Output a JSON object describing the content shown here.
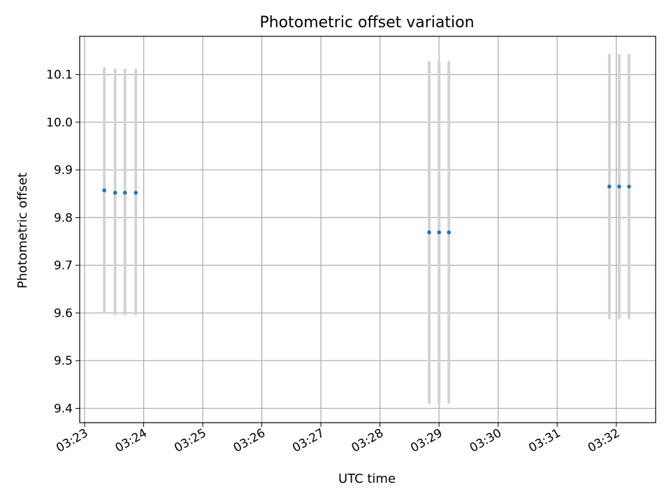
{
  "chart_data": {
    "type": "scatter",
    "title": "Photometric offset variation",
    "xlabel": "UTC time",
    "ylabel": "Photometric offset",
    "grid": true,
    "xlim": [
      "03:22:55",
      "03:32:40"
    ],
    "ylim": [
      9.37,
      10.18
    ],
    "x_ticks": [
      "03:23",
      "03:24",
      "03:25",
      "03:26",
      "03:27",
      "03:28",
      "03:29",
      "03:30",
      "03:31",
      "03:32"
    ],
    "y_ticks": [
      "9.4",
      "9.5",
      "9.6",
      "9.7",
      "9.8",
      "9.9",
      "10.0",
      "10.1"
    ],
    "colors": {
      "points": "#1f77b4",
      "errorbars": "#d3d3d3",
      "grid": "#b0b0b0"
    },
    "points": [
      {
        "x": "03:23:20",
        "y": 9.857,
        "low": 9.6,
        "high": 10.115
      },
      {
        "x": "03:23:31",
        "y": 9.852,
        "low": 9.595,
        "high": 10.112
      },
      {
        "x": "03:23:41",
        "y": 9.852,
        "low": 9.595,
        "high": 10.112
      },
      {
        "x": "03:23:52",
        "y": 9.852,
        "low": 9.595,
        "high": 10.112
      },
      {
        "x": "03:28:50",
        "y": 9.769,
        "low": 9.41,
        "high": 10.128
      },
      {
        "x": "03:29:00",
        "y": 9.769,
        "low": 9.41,
        "high": 10.128
      },
      {
        "x": "03:29:10",
        "y": 9.769,
        "low": 9.41,
        "high": 10.128
      },
      {
        "x": "03:31:53",
        "y": 9.865,
        "low": 9.587,
        "high": 10.143
      },
      {
        "x": "03:32:03",
        "y": 9.865,
        "low": 9.587,
        "high": 10.143
      },
      {
        "x": "03:32:13",
        "y": 9.865,
        "low": 9.587,
        "high": 10.143
      }
    ]
  }
}
